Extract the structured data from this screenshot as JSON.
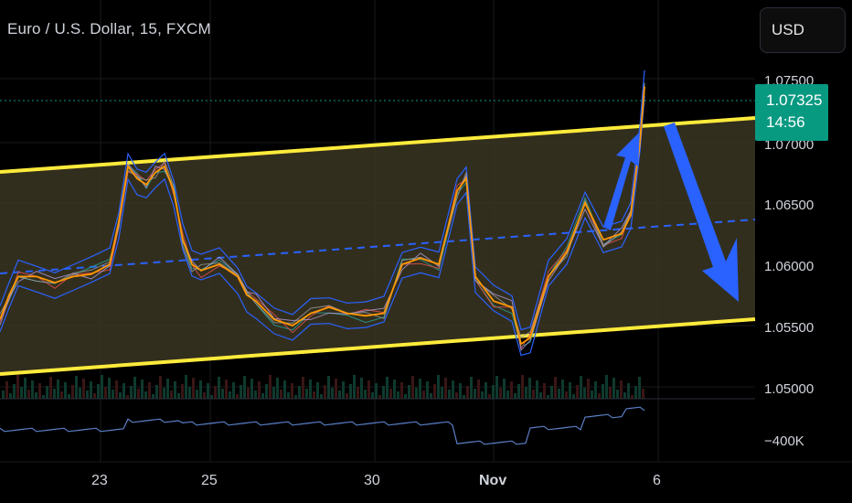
{
  "header": {
    "title": "Euro / U.S. Dollar, 15, FXCM",
    "currency_button": "USD"
  },
  "price_axis": {
    "ticks": [
      "1.07500",
      "1.07000",
      "1.06500",
      "1.06000",
      "1.05500",
      "1.05000"
    ],
    "current_price": "1.07325",
    "countdown": "14:56"
  },
  "indicator_axis": {
    "tick": "−400K"
  },
  "time_axis": {
    "ticks": [
      "23",
      "25",
      "30",
      "Nov",
      "6"
    ]
  },
  "colors": {
    "background": "#000000",
    "channel_line": "#ffeb3b",
    "channel_fill": "#3b3623",
    "bollinger": "#2962ff",
    "ema": "#ff9800",
    "price_tag": "#089981",
    "arrow": "#2962ff"
  },
  "chart_data": {
    "type": "line",
    "title": "Euro / U.S. Dollar, 15, FXCM",
    "x_ticks": [
      "23",
      "25",
      "30",
      "Nov",
      "6"
    ],
    "ylim": [
      1.05,
      1.076
    ],
    "price_series": {
      "x": [
        0,
        10,
        20,
        40,
        60,
        80,
        100,
        120,
        130,
        140,
        150,
        160,
        170,
        180,
        190,
        200,
        210,
        220,
        240,
        260,
        270,
        280,
        300,
        320,
        340,
        360,
        380,
        400,
        420,
        440,
        460,
        480,
        500,
        510,
        520,
        540,
        560,
        570,
        580,
        600,
        620,
        640,
        660,
        680,
        690,
        700,
        705
      ],
      "values": [
        1.0555,
        1.0575,
        1.059,
        1.059,
        1.0585,
        1.059,
        1.0592,
        1.06,
        1.0635,
        1.068,
        1.067,
        1.0665,
        1.0675,
        1.068,
        1.066,
        1.062,
        1.06,
        1.0595,
        1.06,
        1.059,
        1.0575,
        1.057,
        1.0555,
        1.055,
        1.056,
        1.0565,
        1.056,
        1.0558,
        1.056,
        1.06,
        1.0605,
        1.06,
        1.066,
        1.067,
        1.059,
        1.057,
        1.0565,
        1.0535,
        1.054,
        1.059,
        1.061,
        1.065,
        1.062,
        1.0625,
        1.064,
        1.07,
        1.0745
      ]
    },
    "channel": {
      "upper": {
        "start": 1.0684,
        "end": 1.0712
      },
      "lower": {
        "start": 1.0515,
        "end": 1.0555
      },
      "mid": {
        "start": 1.0596,
        "end": 1.0636
      }
    },
    "indicator_tick": "−400K"
  }
}
